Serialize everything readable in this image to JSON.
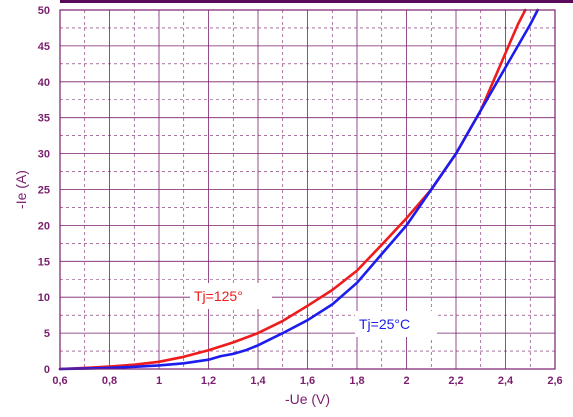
{
  "chart_data": {
    "type": "line",
    "xlabel": "-Ue (V)",
    "ylabel": "-Ie (A)",
    "xlim": [
      0.6,
      2.6
    ],
    "ylim": [
      0,
      50
    ],
    "x_ticks": [
      "0,6",
      "0,8",
      "1",
      "1,2",
      "1,4",
      "1,6",
      "1,8",
      "2",
      "2,2",
      "2,4",
      "2,6"
    ],
    "y_ticks": [
      "0",
      "5",
      "10",
      "15",
      "20",
      "25",
      "30",
      "35",
      "40",
      "45",
      "50"
    ],
    "grid": "major solid, minor dashed",
    "series": [
      {
        "name": "Tj=125°",
        "color": "#ee1c1c",
        "x": [
          0.6,
          0.7,
          0.8,
          0.9,
          1.0,
          1.1,
          1.2,
          1.3,
          1.4,
          1.5,
          1.6,
          1.7,
          1.8,
          1.9,
          2.0,
          2.1,
          2.2,
          2.3,
          2.35,
          2.4,
          2.45,
          2.48
        ],
        "y": [
          0,
          0.15,
          0.35,
          0.6,
          1.0,
          1.7,
          2.6,
          3.7,
          5.0,
          6.7,
          8.8,
          11.0,
          13.7,
          17.3,
          21.0,
          25.0,
          30.0,
          36.0,
          40.0,
          44.0,
          48.0,
          50.0
        ]
      },
      {
        "name": "Tj=25°C",
        "color": "#1c1cee",
        "x": [
          0.6,
          0.7,
          0.8,
          0.9,
          1.0,
          1.1,
          1.2,
          1.25,
          1.3,
          1.35,
          1.4,
          1.5,
          1.6,
          1.7,
          1.8,
          1.9,
          2.0,
          2.1,
          2.2,
          2.3,
          2.4,
          2.5,
          2.53
        ],
        "y": [
          0,
          0.05,
          0.15,
          0.3,
          0.5,
          0.8,
          1.3,
          1.8,
          2.1,
          2.6,
          3.3,
          5.0,
          6.8,
          9.0,
          12.0,
          16.0,
          20.0,
          25.0,
          30.0,
          36.0,
          42.0,
          48.0,
          50.0
        ]
      }
    ],
    "annotations": [
      {
        "text": "Tj=125°",
        "color": "#ee1c1c"
      },
      {
        "text": "Tj=25°C",
        "color": "#1c1cee"
      }
    ],
    "colors": {
      "axis_text": "#7a1f6e",
      "grid": "#7a1f6e",
      "top_bar": "#5a0a5a"
    }
  }
}
